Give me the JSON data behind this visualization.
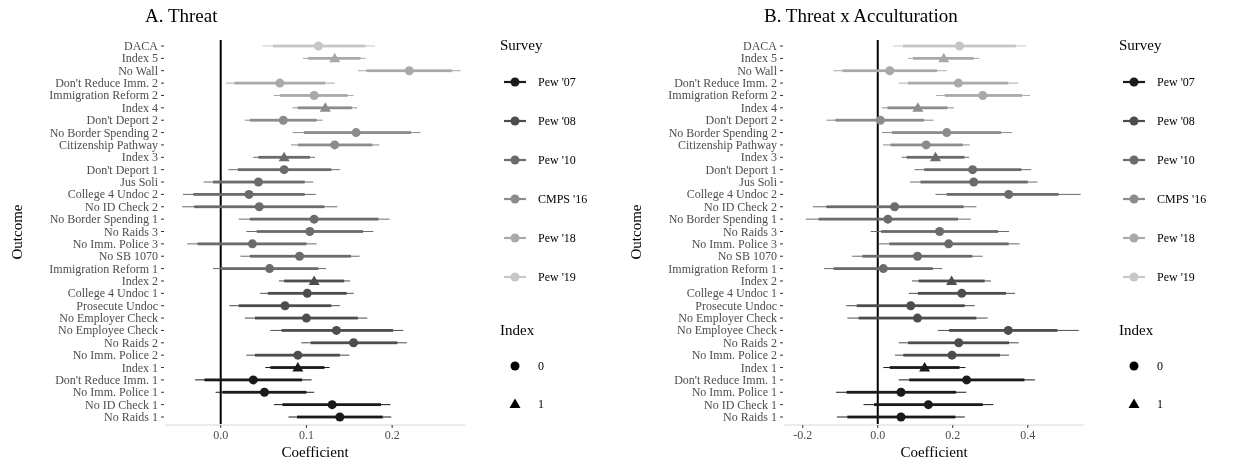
{
  "chart_data": [
    {
      "type": "scatter",
      "orientation": "horizontal",
      "title": "A. Threat",
      "xlabel": "Coefficient",
      "ylabel": "Outcome",
      "legend": "right",
      "legend_title": "Survey",
      "annotations": [
        "Index",
        "0",
        "1"
      ],
      "categories": [
        "DACA",
        "Index 5",
        "No Wall",
        "Don't Reduce Imm. 2",
        "Immigration Reform 2",
        "Index 4",
        "Don't Deport 2",
        "No Border Spending 2",
        "Citizenship Pathway",
        "Index 3",
        "Don't Deport 1",
        "Jus Soli",
        "College 4 Undoc 2",
        "No ID Check 2",
        "No Border Spending 1",
        "No Raids 3",
        "No Imm. Police 3",
        "No SB 1070",
        "Immigration Reform 1",
        "Index 2",
        "College 4 Undoc 1",
        "Prosecute Undoc",
        "No Employer Check",
        "No Employee Check",
        "No Raids 2",
        "No Imm. Police 2",
        "Index 1",
        "Don't Reduce Imm. 1",
        "No Imm. Police 1",
        "No ID Check 1",
        "No Raids 1"
      ],
      "xlim": [
        -0.065,
        0.285
      ],
      "xticks": [
        {
          "value": 0,
          "label": "0.0"
        },
        0.1,
        0.2
      ],
      "ref_lines": [
        {
          "axis": "x",
          "value": 0,
          "color": "#000000"
        }
      ],
      "series": [
        {
          "name": "Pew '07",
          "color": "#1a1a1a",
          "marker": "circle",
          "x": [
            "Don't Reduce Imm. 1",
            "No Imm. Police 1",
            "No ID Check 1",
            "No Raids 1"
          ],
          "values": [
            0.038,
            0.051,
            0.13,
            0.139
          ],
          "errors": [
            [
              -0.03,
              0.106
            ],
            [
              -0.006,
              0.109
            ],
            [
              0.062,
              0.198
            ],
            [
              0.079,
              0.199
            ]
          ]
        },
        {
          "color": "#1a1a1a",
          "marker": "triangle",
          "x": [
            "Index 1"
          ],
          "values": [
            0.09
          ],
          "errors": [
            [
              0.052,
              0.127
            ]
          ]
        },
        {
          "name": "Pew '08",
          "color": "#4d4d4d",
          "marker": "circle",
          "x": [
            "College 4 Undoc 1",
            "Prosecute Undoc",
            "No Employer Check",
            "No Employee Check",
            "No Raids 2",
            "No Imm. Police 2"
          ],
          "values": [
            0.101,
            0.075,
            0.1,
            0.135,
            0.155,
            0.09
          ],
          "errors": [
            [
              0.046,
              0.155
            ],
            [
              0.01,
              0.139
            ],
            [
              0.028,
              0.171
            ],
            [
              0.058,
              0.213
            ],
            [
              0.094,
              0.217
            ],
            [
              0.03,
              0.15
            ]
          ]
        },
        {
          "color": "#4d4d4d",
          "marker": "triangle",
          "x": [
            "Index 2"
          ],
          "values": [
            0.109
          ],
          "errors": [
            [
              0.068,
              0.151
            ]
          ]
        },
        {
          "name": "Pew '10",
          "color": "#6b6b6b",
          "marker": "circle",
          "x": [
            "Don't Deport 1",
            "Jus Soli",
            "College 4 Undoc 2",
            "No ID Check 2",
            "No Border Spending 1",
            "No Raids 3",
            "No Imm. Police 3",
            "No SB 1070",
            "Immigration Reform 1"
          ],
          "values": [
            0.074,
            0.044,
            0.033,
            0.045,
            0.109,
            0.104,
            0.037,
            0.092,
            0.057
          ],
          "errors": [
            [
              0.009,
              0.139
            ],
            [
              -0.02,
              0.108
            ],
            [
              -0.044,
              0.111
            ],
            [
              -0.045,
              0.136
            ],
            [
              0.021,
              0.197
            ],
            [
              0.03,
              0.178
            ],
            [
              -0.039,
              0.112
            ],
            [
              0.023,
              0.162
            ],
            [
              -0.009,
              0.123
            ]
          ]
        },
        {
          "color": "#6b6b6b",
          "marker": "triangle",
          "x": [
            "Index 3"
          ],
          "values": [
            0.074
          ],
          "errors": [
            [
              0.038,
              0.11
            ]
          ]
        },
        {
          "name": "CMPS '16",
          "color": "#8c8c8c",
          "marker": "circle",
          "x": [
            "Don't Deport 2",
            "No Border Spending 2",
            "Citizenship Pathway"
          ],
          "values": [
            0.073,
            0.158,
            0.133
          ],
          "errors": [
            [
              0.028,
              0.119
            ],
            [
              0.084,
              0.233
            ],
            [
              0.082,
              0.185
            ]
          ]
        },
        {
          "color": "#8c8c8c",
          "marker": "triangle",
          "x": [
            "Index 4"
          ],
          "values": [
            0.122
          ],
          "errors": [
            [
              0.084,
              0.159
            ]
          ]
        },
        {
          "name": "Pew '18",
          "color": "#a9a9a9",
          "marker": "circle",
          "x": [
            "No Wall",
            "Don't Reduce Imm. 2",
            "Immigration Reform 2"
          ],
          "values": [
            0.22,
            0.069,
            0.109
          ],
          "errors": [
            [
              0.16,
              0.28
            ],
            [
              0.006,
              0.133
            ],
            [
              0.062,
              0.155
            ]
          ]
        },
        {
          "color": "#a9a9a9",
          "marker": "triangle",
          "x": [
            "Index 5"
          ],
          "values": [
            0.133
          ],
          "errors": [
            [
              0.096,
              0.169
            ]
          ]
        },
        {
          "name": "Pew '19",
          "color": "#c6c6c6",
          "marker": "circle",
          "x": [
            "DACA"
          ],
          "values": [
            0.114
          ],
          "errors": [
            [
              0.049,
              0.18
            ]
          ]
        },
        {
          "type": "bar",
          "color": "#1a1a1a",
          "x": [
            "Index 1",
            "Don't Reduce Imm. 1",
            "No Imm. Police 1",
            "No ID Check 1",
            "No Raids 1"
          ],
          "base": [
            0.058,
            -0.019,
            0.002,
            0.072,
            0.089
          ],
          "values": [
            0.063,
            0.114,
            0.098,
            0.115,
            0.1
          ]
        },
        {
          "type": "bar",
          "color": "#4d4d4d",
          "x": [
            "Index 2",
            "College 4 Undoc 1",
            "Prosecute Undoc",
            "No Employer Check",
            "No Employee Check",
            "No Raids 2",
            "No Imm. Police 2"
          ],
          "base": [
            0.074,
            0.055,
            0.021,
            0.04,
            0.071,
            0.105,
            0.04
          ],
          "values": [
            0.07,
            0.092,
            0.108,
            0.12,
            0.13,
            0.101,
            0.099
          ]
        },
        {
          "type": "bar",
          "color": "#6b6b6b",
          "x": [
            "Index 3",
            "Don't Deport 1",
            "Jus Soli",
            "College 4 Undoc 2",
            "No ID Check 2",
            "No Border Spending 1",
            "No Raids 3",
            "No Imm. Police 3",
            "No SB 1070",
            "Immigration Reform 1"
          ],
          "base": [
            0.044,
            0.02,
            -0.009,
            -0.032,
            -0.031,
            0.034,
            0.042,
            -0.027,
            0.034,
            0.0
          ],
          "values": [
            0.06,
            0.109,
            0.107,
            0.13,
            0.152,
            0.15,
            0.124,
            0.127,
            0.118,
            0.114
          ]
        },
        {
          "type": "bar",
          "color": "#8c8c8c",
          "x": [
            "Index 4",
            "Don't Deport 2",
            "No Border Spending 2",
            "Citizenship Pathway"
          ],
          "base": [
            0.09,
            0.034,
            0.097,
            0.09
          ],
          "values": [
            0.063,
            0.078,
            0.125,
            0.087
          ]
        },
        {
          "type": "bar",
          "color": "#a9a9a9",
          "x": [
            "Index 5",
            "No Wall",
            "Don't Reduce Imm. 2",
            "Immigration Reform 2"
          ],
          "base": [
            0.102,
            0.17,
            0.016,
            0.069
          ],
          "values": [
            0.061,
            0.1,
            0.106,
            0.079
          ]
        },
        {
          "type": "bar",
          "color": "#c6c6c6",
          "x": [
            "DACA"
          ],
          "base": [
            0.061
          ],
          "values": [
            0.108
          ]
        }
      ]
    },
    {
      "type": "scatter",
      "orientation": "horizontal",
      "title": "B. Threat x Acculturation",
      "xlabel": "Coefficient",
      "ylabel": "Outcome",
      "legend": "right",
      "legend_title": "Survey",
      "annotations": [
        "Index",
        "0",
        "1"
      ],
      "categories": [
        "DACA",
        "Index 5",
        "No Wall",
        "Don't Reduce Imm. 2",
        "Immigration Reform 2",
        "Index 4",
        "Don't Deport 2",
        "No Border Spending 2",
        "Citizenship Pathway",
        "Index 3",
        "Don't Deport 1",
        "Jus Soli",
        "College 4 Undoc 2",
        "No ID Check 2",
        "No Border Spending 1",
        "No Raids 3",
        "No Imm. Police 3",
        "No SB 1070",
        "Immigration Reform 1",
        "Index 2",
        "College 4 Undoc 1",
        "Prosecute Undoc",
        "No Employer Check",
        "No Employee Check",
        "No Raids 2",
        "No Imm. Police 2",
        "Index 1",
        "Don't Reduce Imm. 1",
        "No Imm. Police 1",
        "No ID Check 1",
        "No Raids 1"
      ],
      "xlim": [
        -0.25,
        0.55
      ],
      "xticks": [
        -0.2,
        {
          "value": 0,
          "label": "0.0"
        },
        0.2,
        0.4
      ],
      "ref_lines": [
        {
          "axis": "x",
          "value": 0,
          "color": "#000000"
        }
      ],
      "series": [
        {
          "name": "Pew '07",
          "color": "#1a1a1a",
          "marker": "circle",
          "x": [
            "Don't Reduce Imm. 1",
            "No Imm. Police 1",
            "No ID Check 1",
            "No Raids 1"
          ],
          "values": [
            0.237,
            0.062,
            0.135,
            0.062
          ],
          "errors": [
            [
              0.056,
              0.419
            ],
            [
              -0.111,
              0.236
            ],
            [
              -0.038,
              0.308
            ],
            [
              -0.109,
              0.232
            ]
          ]
        },
        {
          "color": "#1a1a1a",
          "marker": "triangle",
          "x": [
            "Index 1"
          ],
          "values": [
            0.125
          ],
          "errors": [
            [
              0.015,
              0.234
            ]
          ]
        },
        {
          "name": "Pew '08",
          "color": "#4d4d4d",
          "marker": "circle",
          "x": [
            "College 4 Undoc 1",
            "Prosecute Undoc",
            "No Employer Check",
            "No Employee Check",
            "No Raids 2",
            "No Imm. Police 2"
          ],
          "values": [
            0.224,
            0.088,
            0.106,
            0.348,
            0.216,
            0.198
          ],
          "errors": [
            [
              0.083,
              0.366
            ],
            [
              -0.084,
              0.258
            ],
            [
              -0.081,
              0.293
            ],
            [
              0.16,
              0.536
            ],
            [
              0.056,
              0.376
            ],
            [
              0.046,
              0.35
            ]
          ]
        },
        {
          "color": "#4d4d4d",
          "marker": "triangle",
          "x": [
            "Index 2"
          ],
          "values": [
            0.197
          ],
          "errors": [
            [
              0.091,
              0.302
            ]
          ]
        },
        {
          "name": "Pew '10",
          "color": "#6b6b6b",
          "marker": "circle",
          "x": [
            "Don't Deport 1",
            "Jus Soli",
            "College 4 Undoc 2",
            "No ID Check 2",
            "No Border Spending 1",
            "No Raids 3",
            "No Imm. Police 3",
            "No SB 1070",
            "Immigration Reform 1"
          ],
          "values": [
            0.253,
            0.256,
            0.349,
            0.045,
            0.027,
            0.165,
            0.189,
            0.106,
            0.015
          ],
          "errors": [
            [
              0.098,
              0.409
            ],
            [
              0.086,
              0.426
            ],
            [
              0.154,
              0.541
            ],
            [
              -0.173,
              0.263
            ],
            [
              -0.192,
              0.248
            ],
            [
              -0.019,
              0.35
            ],
            [
              0.002,
              0.378
            ],
            [
              -0.068,
              0.28
            ],
            [
              -0.143,
              0.172
            ]
          ]
        },
        {
          "color": "#6b6b6b",
          "marker": "triangle",
          "x": [
            "Index 3"
          ],
          "values": [
            0.154
          ],
          "errors": [
            [
              0.064,
              0.244
            ]
          ]
        },
        {
          "name": "CMPS '16",
          "color": "#8c8c8c",
          "marker": "circle",
          "x": [
            "Don't Deport 2",
            "No Border Spending 2",
            "Citizenship Pathway"
          ],
          "values": [
            0.007,
            0.184,
            0.129
          ],
          "errors": [
            [
              -0.137,
              0.149
            ],
            [
              0.011,
              0.358
            ],
            [
              0.014,
              0.245
            ]
          ]
        },
        {
          "color": "#8c8c8c",
          "marker": "triangle",
          "x": [
            "Index 4"
          ],
          "values": [
            0.107
          ],
          "errors": [
            [
              0.011,
              0.203
            ]
          ]
        },
        {
          "name": "Pew '18",
          "color": "#a9a9a9",
          "marker": "circle",
          "x": [
            "No Wall",
            "Don't Reduce Imm. 2",
            "Immigration Reform 2"
          ],
          "values": [
            0.032,
            0.215,
            0.28
          ],
          "errors": [
            [
              -0.118,
              0.184
            ],
            [
              0.056,
              0.374
            ],
            [
              0.156,
              0.406
            ]
          ]
        },
        {
          "color": "#a9a9a9",
          "marker": "triangle",
          "x": [
            "Index 5"
          ],
          "values": [
            0.176
          ],
          "errors": [
            [
              0.081,
              0.271
            ]
          ]
        },
        {
          "name": "Pew '19",
          "color": "#c6c6c6",
          "marker": "circle",
          "x": [
            "DACA"
          ],
          "values": [
            0.218
          ],
          "errors": [
            [
              0.041,
              0.395
            ]
          ]
        },
        {
          "type": "bar",
          "color": "#1a1a1a",
          "x": [
            "Index 1",
            "Don't Reduce Imm. 1",
            "No Imm. Police 1",
            "No ID Check 1",
            "No Raids 1"
          ],
          "base": [
            0.032,
            0.084,
            -0.083,
            -0.01,
            -0.081
          ],
          "values": [
            0.186,
            0.307,
            0.292,
            0.29,
            0.288
          ]
        },
        {
          "type": "bar",
          "color": "#4d4d4d",
          "x": [
            "Index 2",
            "College 4 Undoc 1",
            "Prosecute Undoc",
            "No Employer Check",
            "No Employee Check",
            "No Raids 2",
            "No Imm. Police 2"
          ],
          "base": [
            0.109,
            0.107,
            -0.056,
            -0.051,
            0.19,
            0.081,
            0.068
          ],
          "values": [
            0.176,
            0.235,
            0.288,
            0.314,
            0.289,
            0.269,
            0.258
          ]
        },
        {
          "type": "bar",
          "color": "#6b6b6b",
          "x": [
            "Index 3",
            "Don't Deport 1",
            "Jus Soli",
            "College 4 Undoc 2",
            "No ID Check 2",
            "No Border Spending 1",
            "No Raids 3",
            "No Imm. Police 3",
            "No SB 1070",
            "Immigration Reform 1"
          ],
          "base": [
            0.077,
            0.124,
            0.114,
            0.184,
            -0.137,
            -0.158,
            0.009,
            0.031,
            -0.041,
            -0.118
          ],
          "values": [
            0.154,
            0.259,
            0.286,
            0.298,
            0.366,
            0.372,
            0.312,
            0.318,
            0.293,
            0.265
          ]
        },
        {
          "type": "bar",
          "color": "#8c8c8c",
          "x": [
            "Index 4",
            "Don't Deport 2",
            "No Border Spending 2",
            "Citizenship Pathway"
          ],
          "base": [
            0.026,
            -0.113,
            0.038,
            0.034
          ],
          "values": [
            0.16,
            0.237,
            0.291,
            0.193
          ]
        },
        {
          "type": "bar",
          "color": "#a9a9a9",
          "x": [
            "Index 5",
            "No Wall",
            "Don't Reduce Imm. 2",
            "Immigration Reform 2"
          ],
          "base": [
            0.094,
            -0.094,
            0.081,
            0.179
          ],
          "values": [
            0.162,
            0.252,
            0.267,
            0.206
          ]
        },
        {
          "type": "bar",
          "color": "#c6c6c6",
          "x": [
            "DACA"
          ],
          "base": [
            0.067
          ],
          "values": [
            0.301
          ]
        }
      ]
    }
  ]
}
